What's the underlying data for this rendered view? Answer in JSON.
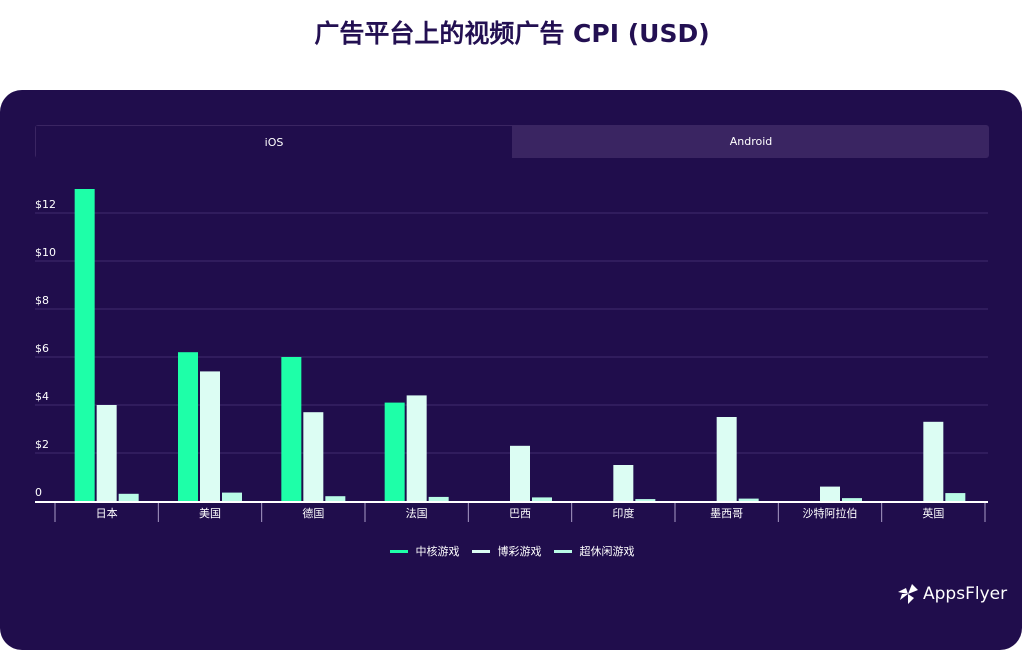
{
  "title": "广告平台上的视频广告 CPI (USD)",
  "tabs": [
    {
      "label": "iOS",
      "active": true
    },
    {
      "label": "Android",
      "active": false
    }
  ],
  "logo_text": "AppsFlyer",
  "chart_data": {
    "type": "bar",
    "title": "广告平台上的视频广告 CPI (USD)",
    "categories": [
      "日本",
      "美国",
      "德国",
      "法国",
      "巴西",
      "印度",
      "墨西哥",
      "沙特阿拉伯",
      "英国"
    ],
    "series": [
      {
        "name": "中核游戏",
        "color": "#1effa8",
        "values": [
          13.0,
          6.2,
          6.0,
          4.1,
          0,
          0,
          0,
          0,
          0
        ]
      },
      {
        "name": "博彩游戏",
        "color": "#dcfdf3",
        "values": [
          4.0,
          5.4,
          3.7,
          4.4,
          2.3,
          1.5,
          3.5,
          0.6,
          3.3
        ]
      },
      {
        "name": "超休闲游戏",
        "color": "#b9fbe6",
        "values": [
          0.3,
          0.35,
          0.2,
          0.17,
          0.15,
          0.08,
          0.1,
          0.12,
          0.33
        ]
      }
    ],
    "yticks": [
      0,
      2,
      4,
      6,
      8,
      10,
      12
    ],
    "ytick_labels": [
      "0",
      "$2",
      "$4",
      "$6",
      "$8",
      "$10",
      "$12"
    ],
    "ylim": [
      0,
      13
    ],
    "grid": true,
    "legend": "bottom"
  }
}
